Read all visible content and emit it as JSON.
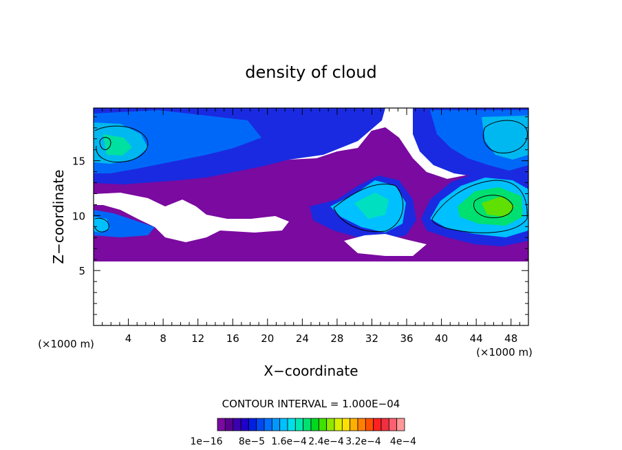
{
  "chart_data": {
    "type": "heatmap",
    "title": "density of cloud",
    "xlabel": "X−coordinate",
    "ylabel": "Z−coordinate",
    "x_unit": "(×1000 m)",
    "z_unit": "(×1000 m)",
    "xlim": [
      0,
      50
    ],
    "ylim": [
      0,
      19.8
    ],
    "x_ticks": [
      4,
      8,
      12,
      16,
      20,
      24,
      28,
      32,
      36,
      40,
      44,
      48
    ],
    "y_ticks": [
      5,
      10,
      15
    ],
    "contour_interval_label": "CONTOUR INTERVAL = 1.000E−04",
    "colorbar": {
      "labels": [
        "1e−16",
        "8e−5",
        "1.6e−4",
        "2.4e−4",
        "3.2e−4",
        "4e−4"
      ],
      "colors": [
        "#7a0aa0",
        "#5a0090",
        "#3c00b0",
        "#2000c8",
        "#0020e0",
        "#0048f0",
        "#0070ff",
        "#0098ff",
        "#00c0ff",
        "#00e0e8",
        "#00e8b0",
        "#00e070",
        "#00d820",
        "#40e000",
        "#90e800",
        "#d8f000",
        "#ffe000",
        "#ffb000",
        "#ff8000",
        "#ff5000",
        "#ff2020",
        "#f03040",
        "#ff6070",
        "#ff9898"
      ]
    },
    "cloud_regions": [
      {
        "x": [
          0,
          50
        ],
        "z": [
          6,
          13.5
        ],
        "level": 1,
        "note_value_range": "1e-16"
      },
      {
        "x": [
          0,
          22
        ],
        "z": [
          13.5,
          19.8
        ],
        "level": 6
      },
      {
        "x": [
          37,
          50
        ],
        "z": [
          12.5,
          19.8
        ],
        "level": 6
      },
      {
        "x": [
          28,
          36
        ],
        "z": [
          8.5,
          12.5
        ],
        "level": 9
      },
      {
        "x": [
          38,
          50
        ],
        "z": [
          8.5,
          13
        ],
        "level": 11
      }
    ]
  }
}
